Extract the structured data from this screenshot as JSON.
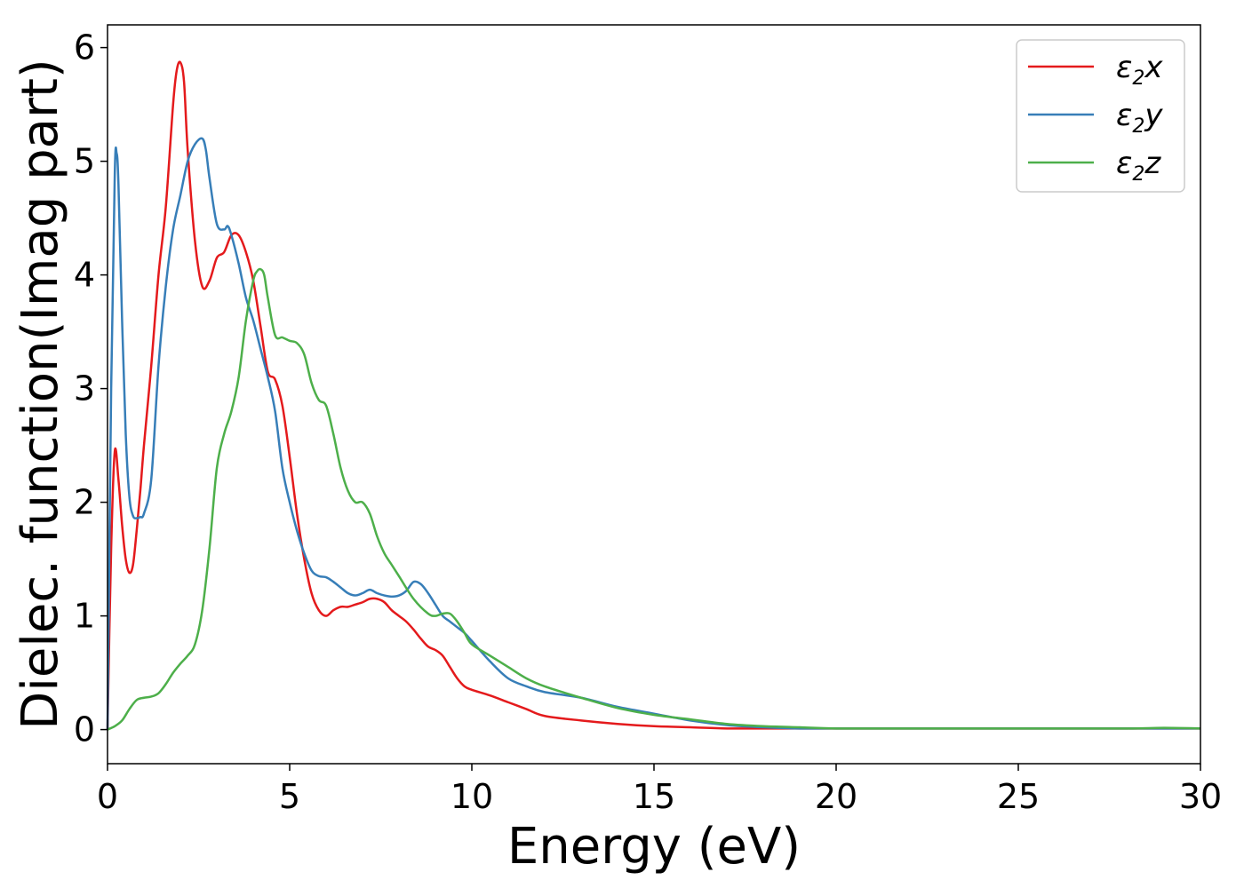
{
  "chart_data": {
    "type": "line",
    "title": "",
    "xlabel": "Energy (eV)",
    "ylabel": "Dielec. function(Imag part)",
    "xlim": [
      0,
      30
    ],
    "ylim": [
      -0.3,
      6.2
    ],
    "xticks": [
      0,
      5,
      10,
      15,
      20,
      25,
      30
    ],
    "yticks": [
      0,
      1,
      2,
      3,
      4,
      5,
      6
    ],
    "grid": false,
    "legend_position": "top-right",
    "series": [
      {
        "name": "ε2x",
        "legend_base": "ε",
        "legend_sub": "2",
        "legend_tail": "x",
        "color": "#e41a1c",
        "x": [
          0,
          0.1,
          0.2,
          0.3,
          0.4,
          0.5,
          0.6,
          0.7,
          0.8,
          0.9,
          1.0,
          1.2,
          1.4,
          1.6,
          1.8,
          1.9,
          2.0,
          2.1,
          2.2,
          2.4,
          2.6,
          2.8,
          3.0,
          3.2,
          3.4,
          3.6,
          3.8,
          4.0,
          4.2,
          4.4,
          4.6,
          4.8,
          5.0,
          5.2,
          5.4,
          5.6,
          5.8,
          6.0,
          6.2,
          6.4,
          6.6,
          6.8,
          7.0,
          7.2,
          7.4,
          7.6,
          7.8,
          8.0,
          8.2,
          8.4,
          8.6,
          8.8,
          9.0,
          9.2,
          9.4,
          9.6,
          9.8,
          10.0,
          10.5,
          11.0,
          11.5,
          12.0,
          13.0,
          14.0,
          15.0,
          16.0,
          17.0,
          18.0,
          19.0,
          20.0,
          22.0,
          24.0,
          26.0,
          28.0,
          30.0
        ],
        "y": [
          0,
          1.6,
          2.45,
          2.2,
          1.8,
          1.5,
          1.38,
          1.45,
          1.75,
          2.1,
          2.5,
          3.2,
          4.0,
          4.6,
          5.5,
          5.8,
          5.87,
          5.7,
          5.1,
          4.3,
          3.9,
          3.95,
          4.15,
          4.2,
          4.35,
          4.35,
          4.2,
          3.95,
          3.55,
          3.15,
          3.08,
          2.85,
          2.4,
          1.9,
          1.5,
          1.2,
          1.05,
          1.0,
          1.05,
          1.08,
          1.08,
          1.1,
          1.12,
          1.15,
          1.15,
          1.12,
          1.05,
          1.0,
          0.95,
          0.88,
          0.8,
          0.73,
          0.7,
          0.65,
          0.55,
          0.45,
          0.38,
          0.35,
          0.3,
          0.24,
          0.18,
          0.12,
          0.08,
          0.05,
          0.03,
          0.02,
          0.01,
          0.01,
          0.01,
          0.01,
          0.01,
          0.01,
          0.01,
          0.01,
          0.01
        ]
      },
      {
        "name": "ε2y",
        "legend_base": "ε",
        "legend_sub": "2",
        "legend_tail": "y",
        "color": "#377eb8",
        "x": [
          0,
          0.1,
          0.2,
          0.25,
          0.3,
          0.4,
          0.5,
          0.6,
          0.7,
          0.8,
          0.9,
          1.0,
          1.2,
          1.4,
          1.6,
          1.8,
          2.0,
          2.2,
          2.4,
          2.6,
          2.7,
          2.8,
          3.0,
          3.2,
          3.3,
          3.4,
          3.6,
          3.8,
          4.0,
          4.2,
          4.4,
          4.6,
          4.8,
          5.0,
          5.2,
          5.4,
          5.6,
          5.8,
          6.0,
          6.2,
          6.4,
          6.6,
          6.8,
          7.0,
          7.2,
          7.4,
          7.6,
          7.8,
          8.0,
          8.2,
          8.4,
          8.6,
          8.8,
          9.0,
          9.2,
          9.4,
          9.6,
          9.8,
          10.0,
          10.5,
          11.0,
          11.5,
          12.0,
          13.0,
          14.0,
          15.0,
          16.0,
          17.0,
          18.0,
          19.0,
          20.0,
          22.0,
          24.0,
          26.0,
          28.0,
          30.0
        ],
        "y": [
          0,
          3.0,
          4.9,
          5.07,
          4.8,
          3.6,
          2.6,
          2.05,
          1.88,
          1.86,
          1.87,
          1.9,
          2.2,
          3.2,
          3.9,
          4.4,
          4.7,
          5.0,
          5.15,
          5.2,
          5.1,
          4.85,
          4.45,
          4.4,
          4.43,
          4.35,
          4.1,
          3.8,
          3.6,
          3.35,
          3.1,
          2.8,
          2.3,
          2.0,
          1.75,
          1.55,
          1.4,
          1.35,
          1.34,
          1.3,
          1.25,
          1.2,
          1.18,
          1.2,
          1.23,
          1.2,
          1.18,
          1.17,
          1.18,
          1.22,
          1.3,
          1.28,
          1.2,
          1.1,
          1.0,
          0.95,
          0.9,
          0.85,
          0.78,
          0.6,
          0.45,
          0.38,
          0.33,
          0.28,
          0.2,
          0.14,
          0.08,
          0.04,
          0.02,
          0.01,
          0.01,
          0.01,
          0.01,
          0.01,
          0.01,
          0.01
        ]
      },
      {
        "name": "ε2z",
        "legend_base": "ε",
        "legend_sub": "2",
        "legend_tail": "z",
        "color": "#4daf4a",
        "x": [
          0,
          0.2,
          0.4,
          0.6,
          0.8,
          1.0,
          1.2,
          1.4,
          1.6,
          1.8,
          2.0,
          2.2,
          2.4,
          2.6,
          2.8,
          3.0,
          3.2,
          3.4,
          3.6,
          3.8,
          4.0,
          4.1,
          4.2,
          4.3,
          4.4,
          4.6,
          4.8,
          5.0,
          5.2,
          5.4,
          5.6,
          5.8,
          6.0,
          6.2,
          6.4,
          6.6,
          6.8,
          7.0,
          7.2,
          7.4,
          7.6,
          7.8,
          8.0,
          8.4,
          8.8,
          9.0,
          9.2,
          9.4,
          9.6,
          9.8,
          10.0,
          10.5,
          11.0,
          11.5,
          12.0,
          13.0,
          14.0,
          15.0,
          16.0,
          17.0,
          18.0,
          19.0,
          20.0,
          22.0,
          24.0,
          26.0,
          28.0,
          29.0,
          30.0
        ],
        "y": [
          0,
          0.03,
          0.08,
          0.18,
          0.26,
          0.28,
          0.29,
          0.32,
          0.4,
          0.5,
          0.58,
          0.65,
          0.75,
          1.05,
          1.6,
          2.3,
          2.6,
          2.8,
          3.1,
          3.6,
          3.95,
          4.03,
          4.05,
          4.0,
          3.8,
          3.47,
          3.45,
          3.42,
          3.4,
          3.3,
          3.05,
          2.9,
          2.85,
          2.6,
          2.3,
          2.1,
          2.0,
          2.0,
          1.9,
          1.7,
          1.55,
          1.45,
          1.35,
          1.15,
          1.02,
          1.0,
          1.02,
          1.02,
          0.95,
          0.85,
          0.75,
          0.65,
          0.55,
          0.45,
          0.38,
          0.28,
          0.19,
          0.13,
          0.09,
          0.05,
          0.03,
          0.02,
          0.01,
          0.01,
          0.01,
          0.01,
          0.01,
          0.015,
          0.01
        ]
      }
    ]
  }
}
